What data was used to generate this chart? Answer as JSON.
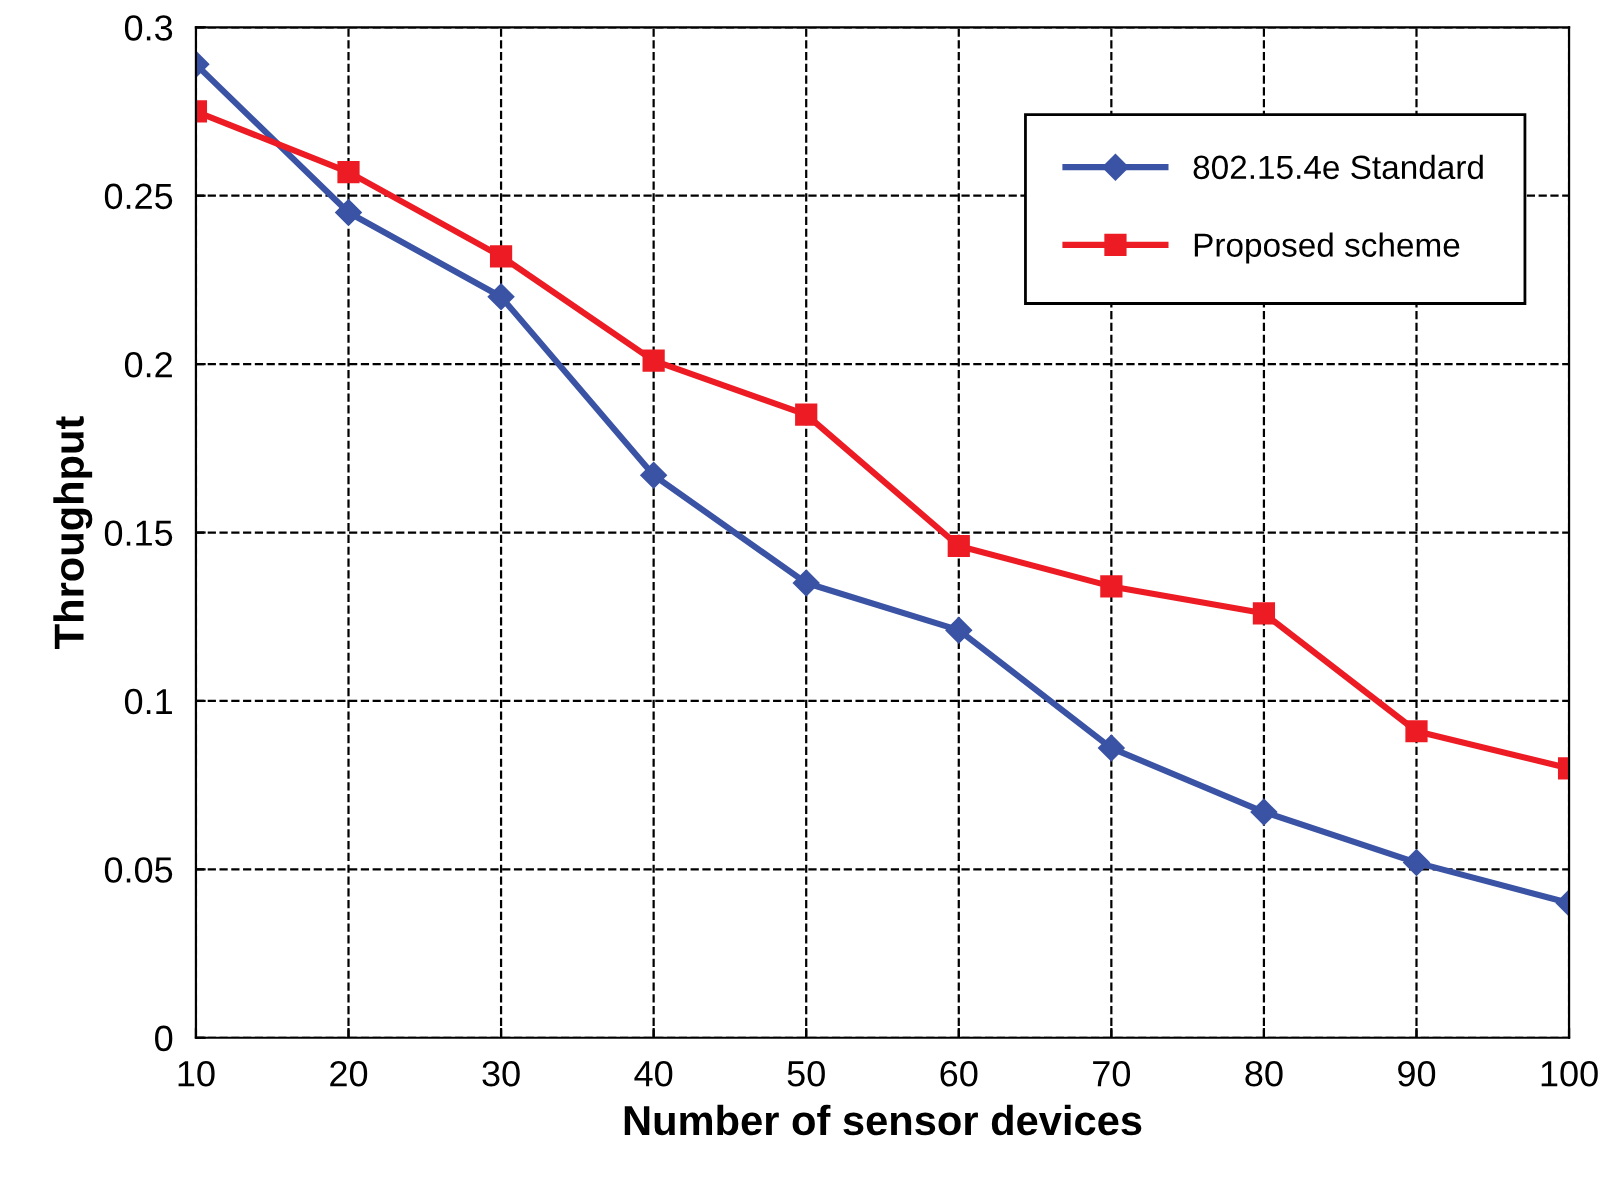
{
  "chart_data": {
    "type": "line",
    "xlabel": "Number of sensor devices",
    "ylabel": "Throughput",
    "x": [
      10,
      20,
      30,
      40,
      50,
      60,
      70,
      80,
      90,
      100
    ],
    "series": [
      {
        "name": "802.15.4e Standard",
        "color": "#3a53a4",
        "marker": "diamond",
        "values": [
          0.289,
          0.245,
          0.22,
          0.167,
          0.135,
          0.121,
          0.086,
          0.067,
          0.052,
          0.04
        ]
      },
      {
        "name": "Proposed scheme",
        "color": "#ed1c24",
        "marker": "square",
        "values": [
          0.275,
          0.257,
          0.232,
          0.201,
          0.185,
          0.146,
          0.134,
          0.126,
          0.091,
          0.08
        ]
      }
    ],
    "xlim": [
      10,
      100
    ],
    "xticks": [
      10,
      20,
      30,
      40,
      50,
      60,
      70,
      80,
      90,
      100
    ],
    "ylim": [
      0,
      0.3
    ],
    "yticks": [
      0,
      0.05,
      0.1,
      0.15,
      0.2,
      0.25,
      0.3
    ],
    "grid": true,
    "legend": "top right",
    "line_style": "solid"
  }
}
